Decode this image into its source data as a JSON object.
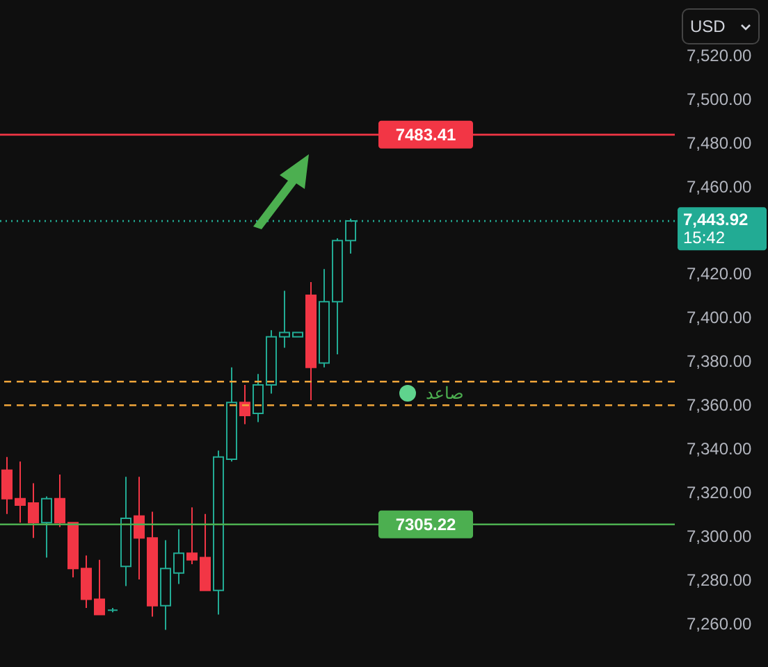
{
  "chart_data": {
    "type": "candlestick",
    "categories": [
      null,
      null,
      null,
      null,
      null,
      null,
      null,
      null,
      null,
      null,
      null,
      null,
      null,
      null,
      null,
      null,
      null,
      null,
      null,
      null,
      null,
      null,
      null,
      null,
      null,
      null,
      null,
      null,
      null,
      null,
      null,
      null,
      null,
      null,
      null,
      null,
      null,
      null,
      null,
      null,
      null,
      null,
      null,
      null,
      null,
      null,
      null,
      null,
      null,
      null
    ],
    "ohlc": [
      [
        7330,
        7336,
        7310,
        7317
      ],
      [
        7317,
        7334,
        7306,
        7314
      ],
      [
        7315,
        7324,
        7299,
        7306
      ],
      [
        7306,
        7318,
        7290,
        7317
      ],
      [
        7317,
        7328,
        7304,
        7306
      ],
      [
        7306,
        7306,
        7281,
        7285
      ],
      [
        7285,
        7291,
        7267,
        7271
      ],
      [
        7271,
        7289,
        7264,
        7264
      ],
      [
        7266,
        7267,
        7265,
        7266
      ],
      [
        7286,
        7327,
        7277,
        7308
      ],
      [
        7309,
        7327,
        7280,
        7299
      ],
      [
        7299,
        7311,
        7263,
        7268
      ],
      [
        7268,
        7298,
        7257,
        7285
      ],
      [
        7283,
        7303,
        7278,
        7292
      ],
      [
        7292,
        7313,
        7287,
        7289
      ],
      [
        7290,
        7310,
        7275,
        7275
      ],
      [
        7275,
        7339,
        7264,
        7336
      ],
      [
        7335,
        7377,
        7334,
        7361
      ],
      [
        7361,
        7369,
        7351,
        7355
      ],
      [
        7356,
        7374,
        7352,
        7369
      ],
      [
        7369,
        7394,
        7365,
        7391
      ],
      [
        7391,
        7412,
        7386,
        7393
      ],
      [
        7391,
        7393,
        7391,
        7393
      ],
      [
        7410,
        7416,
        7362,
        7377
      ],
      [
        7379,
        7422,
        7377,
        7407
      ],
      [
        7407,
        7436,
        7383,
        7435
      ],
      [
        7435,
        7445,
        7429,
        7444
      ],
      null,
      null,
      null,
      null,
      null,
      null,
      null,
      null,
      null,
      null,
      null,
      null,
      null,
      null,
      null,
      null,
      null,
      null,
      null,
      null,
      null,
      null,
      null
    ],
    "colors": [
      "#f23645",
      "#f23645",
      "#f23645",
      "#22ab94",
      "#f23645",
      "#f23645",
      "#f23645",
      "#f23645",
      "#22ab94",
      "#22ab94",
      "#f23645",
      "#f23645",
      "#22ab94",
      "#22ab94",
      "#f23645",
      "#f23645",
      "#22ab94",
      "#22ab94",
      "#f23645",
      "#22ab94",
      "#22ab94",
      "#22ab94",
      "#22ab94",
      "#f23645",
      "#22ab94",
      "#22ab94",
      "#22ab94",
      null,
      null,
      null,
      null,
      null,
      null,
      null,
      null,
      null,
      null,
      null,
      null,
      null,
      null,
      null,
      null,
      null,
      null,
      null,
      null,
      null,
      null,
      null
    ],
    "ylim": [
      7240,
      7545
    ],
    "yticks": [
      {
        "value": 7260,
        "label": "7,260.00"
      },
      {
        "value": 7280,
        "label": "7,280.00"
      },
      {
        "value": 7300,
        "label": "7,300.00"
      },
      {
        "value": 7320,
        "label": "7,320.00"
      },
      {
        "value": 7340,
        "label": "7,340.00"
      },
      {
        "value": 7360,
        "label": "7,360.00"
      },
      {
        "value": 7380,
        "label": "7,380.00"
      },
      {
        "value": 7400,
        "label": "7,400.00"
      },
      {
        "value": 7420,
        "label": "7,420.00"
      },
      {
        "value": 7460,
        "label": "7,460.00"
      },
      {
        "value": 7480,
        "label": "7,480.00"
      },
      {
        "value": 7500,
        "label": "7,500.00"
      },
      {
        "value": 7520,
        "label": "7,520.00"
      }
    ],
    "ref_lines": [
      {
        "axis": "y",
        "value": 7483.41,
        "label": "7483.41",
        "color": "#f23645",
        "line_style": "solid"
      },
      {
        "axis": "y",
        "value": 7305.22,
        "label": "7305.22",
        "color": "#4caf50",
        "line_style": "solid"
      },
      {
        "axis": "y",
        "value": 7370.5,
        "color": "#f0a53a",
        "line_style": "dashed"
      },
      {
        "axis": "y",
        "value": 7359.7,
        "color": "#f0a53a",
        "line_style": "dashed"
      },
      {
        "axis": "y",
        "value": 7443.92,
        "label": "7,443.92",
        "color": "#22ab94",
        "line_style": "dotted"
      }
    ],
    "annotations": [
      "USD",
      "صاعد",
      "15:42"
    ]
  }
}
